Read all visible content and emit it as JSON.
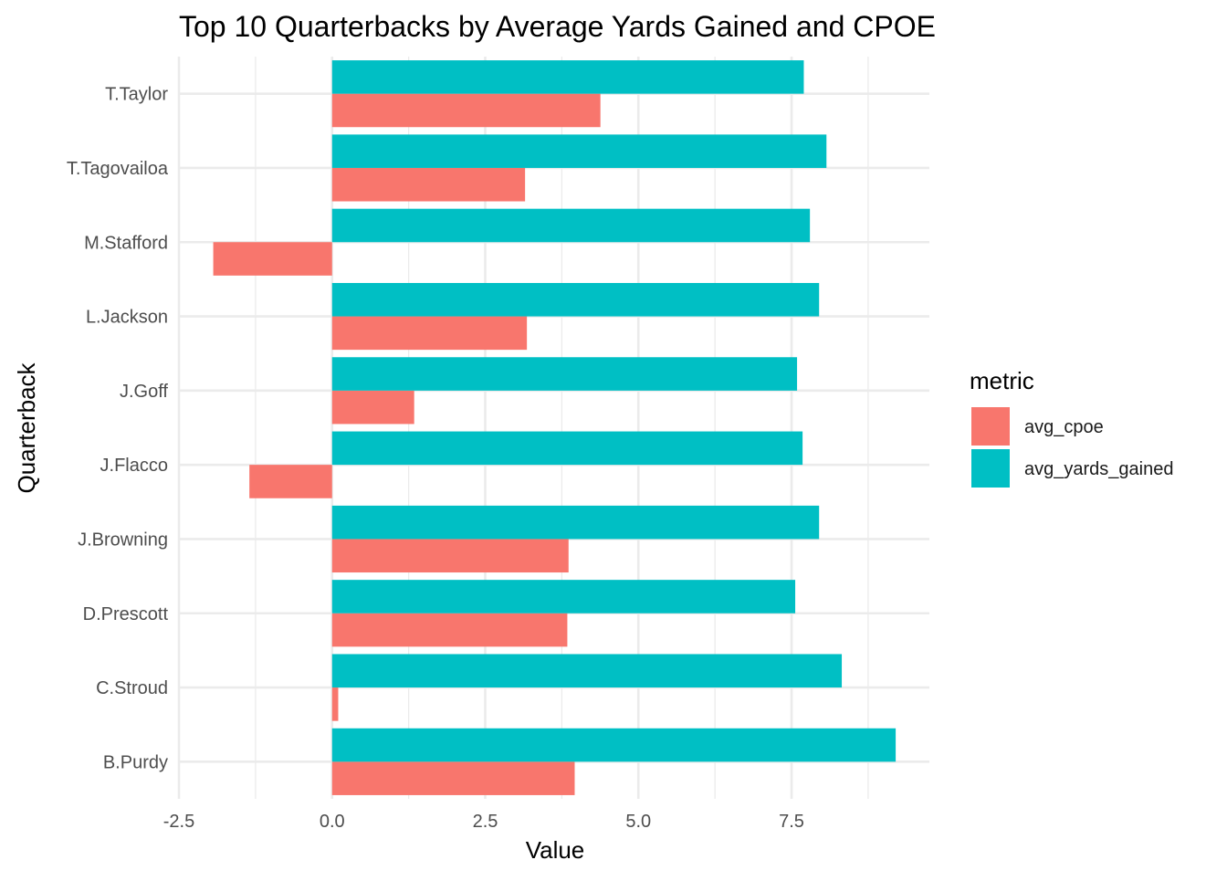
{
  "chart_data": {
    "type": "bar",
    "orientation": "horizontal",
    "title": "Top 10 Quarterbacks by Average Yards Gained and CPOE",
    "xlabel": "Value",
    "ylabel": "Quarterback",
    "categories": [
      "B.Purdy",
      "C.Stroud",
      "D.Prescott",
      "J.Browning",
      "J.Flacco",
      "J.Goff",
      "L.Jackson",
      "M.Stafford",
      "T.Tagovailoa",
      "T.Taylor"
    ],
    "series": [
      {
        "name": "avg_cpoe",
        "color": "#F8766D",
        "values": [
          3.96,
          0.1,
          3.84,
          3.86,
          -1.35,
          1.34,
          3.18,
          -1.94,
          3.15,
          4.38
        ]
      },
      {
        "name": "avg_yards_gained",
        "color": "#00BFC4",
        "values": [
          9.2,
          8.32,
          7.56,
          7.95,
          7.68,
          7.59,
          7.95,
          7.8,
          8.07,
          7.7
        ]
      }
    ],
    "xlim": [
      -2.5,
      9.75
    ],
    "x_ticks": [
      -2.5,
      0.0,
      2.5,
      5.0,
      7.5
    ],
    "x_tick_labels": [
      "-2.5",
      "0.0",
      "2.5",
      "5.0",
      "7.5"
    ],
    "grid": true,
    "legend": {
      "title": "metric",
      "position": "right",
      "entries": [
        "avg_cpoe",
        "avg_yards_gained"
      ]
    }
  }
}
